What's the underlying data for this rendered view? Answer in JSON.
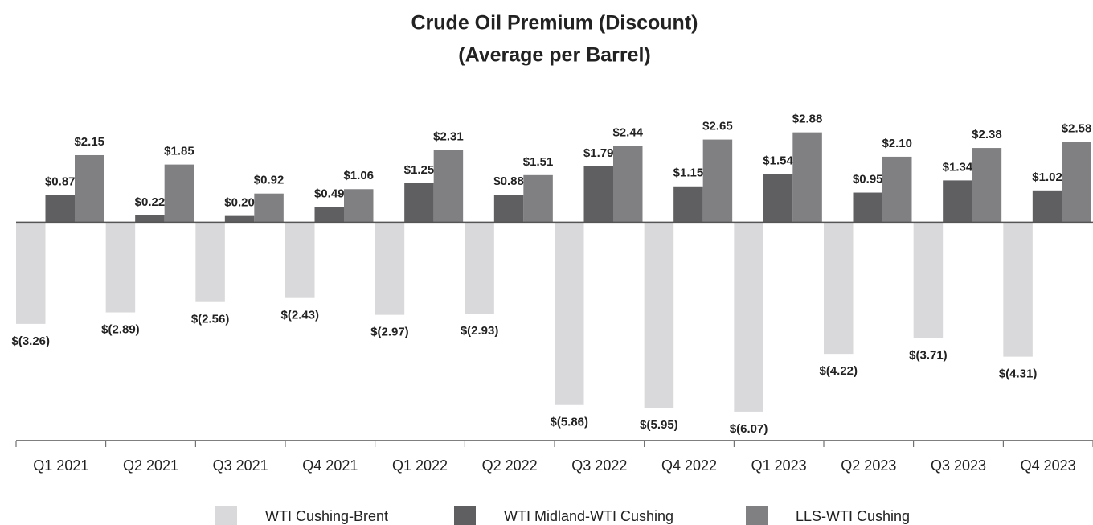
{
  "chart_data": {
    "type": "bar",
    "title": "Crude Oil Premium (Discount)",
    "subtitle": "(Average per Barrel)",
    "categories": [
      "Q1 2021",
      "Q2 2021",
      "Q3 2021",
      "Q4 2021",
      "Q1 2022",
      "Q2 2022",
      "Q3 2022",
      "Q4 2022",
      "Q1 2023",
      "Q2 2023",
      "Q3 2023",
      "Q4 2023"
    ],
    "series": [
      {
        "name": "WTI Cushing-Brent",
        "color": "#d9d9db",
        "values": [
          -3.26,
          -2.89,
          -2.56,
          -2.43,
          -2.97,
          -2.93,
          -5.86,
          -5.95,
          -6.07,
          -4.22,
          -3.71,
          -4.31
        ],
        "value_labels": [
          "$(3.26)",
          "$(2.89)",
          "$(2.56)",
          "$(2.43)",
          "$(2.97)",
          "$(2.93)",
          "$(5.86)",
          "$(5.95)",
          "$(6.07)",
          "$(4.22)",
          "$(3.71)",
          "$(4.31)"
        ]
      },
      {
        "name": "WTI Midland-WTI Cushing",
        "color": "#5f5f61",
        "values": [
          0.87,
          0.22,
          0.2,
          0.49,
          1.25,
          0.88,
          1.79,
          1.15,
          1.54,
          0.95,
          1.34,
          1.02
        ],
        "value_labels": [
          "$0.87",
          "$0.22",
          "$0.20",
          "$0.49",
          "$1.25",
          "$0.88",
          "$1.79",
          "$1.15",
          "$1.54",
          "$0.95",
          "$1.34",
          "$1.02"
        ]
      },
      {
        "name": "LLS-WTI Cushing",
        "color": "#808083",
        "values": [
          2.15,
          1.85,
          0.92,
          1.06,
          2.31,
          1.51,
          2.44,
          2.65,
          2.88,
          2.1,
          2.38,
          2.58
        ],
        "value_labels": [
          "$2.15",
          "$1.85",
          "$0.92",
          "$1.06",
          "$2.31",
          "$1.51",
          "$2.44",
          "$2.65",
          "$2.88",
          "$2.10",
          "$2.38",
          "$2.58"
        ]
      }
    ],
    "ylim": [
      -7,
      3
    ]
  }
}
